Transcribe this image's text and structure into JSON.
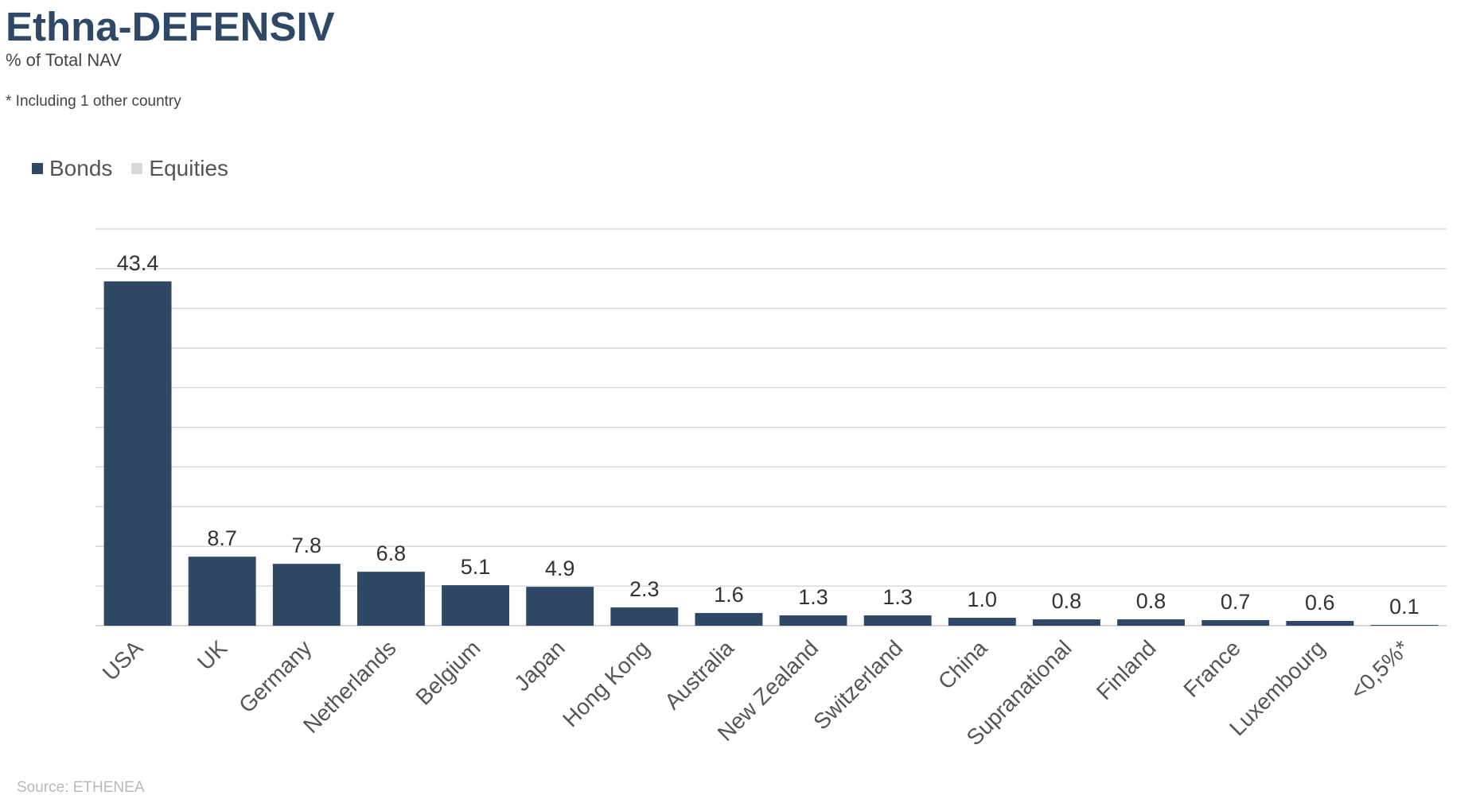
{
  "title": "Ethna-DEFENSIV",
  "subtitle": "% of Total NAV",
  "footnote": "* Including 1 other country",
  "source": "Source: ETHENEA",
  "colors": {
    "bonds": "#2e4866",
    "equities": "#d9d9d9",
    "grid": "#d9d9d9",
    "title": "#2e4866"
  },
  "legend": {
    "position": "top-left",
    "items": [
      {
        "label": "Bonds",
        "color": "#2e4866"
      },
      {
        "label": "Equities",
        "color": "#d9d9d9"
      }
    ]
  },
  "chart_data": {
    "type": "bar",
    "title": "Ethna-DEFENSIV",
    "subtitle": "% of Total NAV",
    "categories": [
      "USA",
      "UK",
      "Germany",
      "Netherlands",
      "Belgium",
      "Japan",
      "Hong Kong",
      "Australia",
      "New Zealand",
      "Switzerland",
      "China",
      "Supranational",
      "Finland",
      "France",
      "Luxembourg",
      "<0,5%*"
    ],
    "series": [
      {
        "name": "Bonds",
        "values": [
          43.4,
          8.7,
          7.8,
          6.8,
          5.1,
          4.9,
          2.3,
          1.6,
          1.3,
          1.3,
          1.0,
          0.8,
          0.8,
          0.7,
          0.6,
          0.1
        ]
      },
      {
        "name": "Equities",
        "values": [
          0,
          0,
          0,
          0,
          0,
          0,
          0,
          0,
          0,
          0,
          0,
          0,
          0,
          0,
          0,
          0
        ]
      }
    ],
    "data_labels": [
      "43.4",
      "8.7",
      "7.8",
      "6.8",
      "5.1",
      "4.9",
      "2.3",
      "1.6",
      "1.3",
      "1.3",
      "1.0",
      "0.8",
      "0.8",
      "0.7",
      "0.6",
      "0.1"
    ],
    "xlabel": "",
    "ylabel": "",
    "ylim": [
      0,
      50
    ],
    "grid": true,
    "stacked": true
  }
}
